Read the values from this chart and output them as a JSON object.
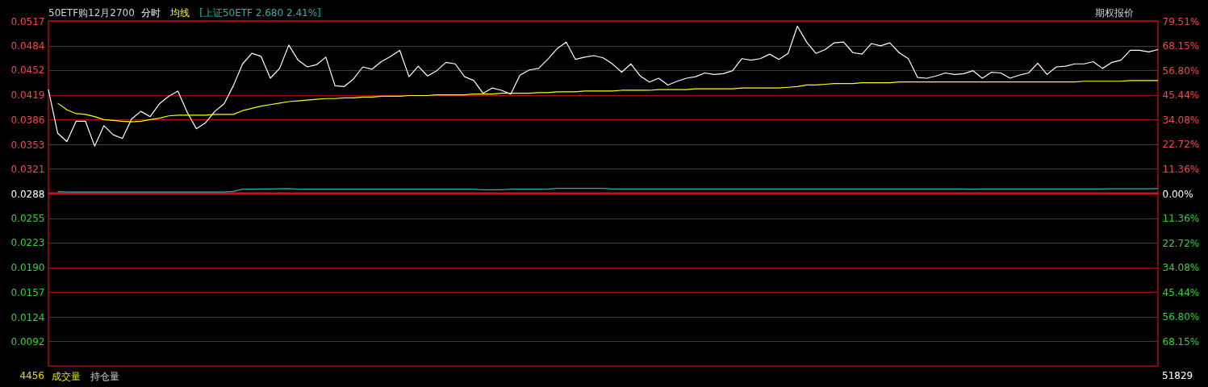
{
  "chart_data": {
    "type": "line",
    "title": "50ETF购12月2700",
    "categories": [
      null,
      null,
      null,
      null,
      null,
      null,
      null,
      null,
      null,
      null,
      null,
      null,
      null,
      null,
      null,
      null,
      null,
      null,
      null,
      null,
      null,
      null,
      null,
      null,
      null,
      null,
      null,
      null,
      null,
      null,
      null,
      null,
      null,
      null,
      null,
      null,
      null,
      null,
      null,
      null,
      null,
      null,
      null,
      null,
      null,
      null,
      null,
      null,
      null,
      null,
      null,
      null,
      null,
      null,
      null,
      null,
      null,
      null,
      null,
      null,
      null,
      null,
      null,
      null,
      null,
      null,
      null,
      null,
      null,
      null,
      null,
      null,
      null,
      null,
      null,
      null,
      null,
      null,
      null,
      null,
      null,
      null,
      null,
      null,
      null,
      null,
      null,
      null,
      null,
      null,
      null,
      null,
      null,
      null,
      null,
      null,
      null,
      null,
      null,
      null,
      null,
      null,
      null,
      null,
      null,
      null,
      null,
      null,
      null,
      null,
      null,
      null,
      null,
      null,
      null,
      null,
      null,
      null,
      null,
      null,
      null
    ],
    "ylim": [
      0.0059,
      0.0517
    ],
    "yticks": [
      0.0517,
      0.0484,
      0.0452,
      0.0419,
      0.0386,
      0.0353,
      0.0321,
      0.0288,
      0.0255,
      0.0223,
      {
        "value": 0.019,
        "label": "0.0190"
      },
      0.0157,
      0.0124,
      0.0092
    ],
    "y2lim": [
      -79.51,
      79.51
    ],
    "y2ticks": [
      {
        "value": 79.51,
        "label": "79.51%"
      },
      {
        "value": 68.15,
        "label": "68.15%"
      },
      {
        "value": 56.8,
        "label": "56.80%"
      },
      {
        "value": 45.44,
        "label": "45.44%"
      },
      {
        "value": 34.08,
        "label": "34.08%"
      },
      {
        "value": 22.72,
        "label": "22.72%"
      },
      {
        "value": 11.36,
        "label": "11.36%"
      },
      {
        "value": 0,
        "label": "0.00%"
      },
      {
        "value": -11.36,
        "label": "11.36%"
      },
      {
        "value": -22.72,
        "label": "22.72%"
      },
      {
        "value": -34.08,
        "label": "34.08%"
      },
      {
        "value": -45.44,
        "label": "45.44%"
      },
      {
        "value": -56.8,
        "label": "56.80%"
      },
      {
        "value": -68.15,
        "label": "68.15%"
      }
    ],
    "tick_labels": "y",
    "grid": "y",
    "marker": "none",
    "line_style": "solid",
    "series": [
      {
        "name": "分时",
        "color": "#ffffff",
        "values": [
          0.0426,
          0.0368,
          0.0357,
          0.0384,
          0.0384,
          0.0351,
          0.0378,
          0.0366,
          0.0361,
          0.0387,
          0.0397,
          0.039,
          0.0407,
          0.0417,
          0.0424,
          0.0396,
          0.0374,
          0.0382,
          0.0397,
          0.0407,
          0.0431,
          0.046,
          0.0474,
          0.047,
          0.0441,
          0.0454,
          0.0485,
          0.0465,
          0.0456,
          0.0459,
          0.0469,
          0.0431,
          0.043,
          0.044,
          0.0456,
          0.0453,
          0.0463,
          0.047,
          0.0478,
          0.0443,
          0.0457,
          0.0444,
          0.0451,
          0.0462,
          0.046,
          0.0443,
          0.0438,
          0.0421,
          0.0428,
          0.0425,
          0.042,
          0.0445,
          0.0452,
          0.0454,
          0.0466,
          0.048,
          0.0489,
          0.0466,
          0.0469,
          0.0471,
          0.0468,
          0.046,
          0.0449,
          0.046,
          0.0444,
          0.0436,
          0.0441,
          0.0432,
          0.0437,
          0.0441,
          0.0443,
          0.0448,
          0.0446,
          0.0447,
          0.0451,
          0.0467,
          0.0465,
          0.0467,
          0.0473,
          0.0466,
          0.0474,
          0.051,
          0.0489,
          0.0474,
          0.0479,
          0.0488,
          0.0489,
          0.0475,
          0.0473,
          0.0487,
          0.0484,
          0.0488,
          0.0475,
          0.0467,
          0.0442,
          0.0441,
          0.0444,
          0.0448,
          0.0446,
          0.0447,
          0.0451,
          0.0441,
          0.0449,
          0.0448,
          0.0441,
          0.0445,
          0.0448,
          0.0461,
          0.0446,
          0.0456,
          0.0457,
          0.046,
          0.046,
          0.0463,
          0.0454,
          0.0462,
          0.0465,
          0.0478,
          0.0478,
          0.0476,
          0.0479
        ]
      },
      {
        "name": "均线",
        "color": "#ffff00",
        "values": [
          null,
          0.0408,
          0.0399,
          0.0394,
          0.0393,
          0.039,
          0.0386,
          0.0385,
          0.0384,
          0.0383,
          0.0384,
          0.0386,
          0.0388,
          0.0391,
          0.0392,
          0.0392,
          0.0392,
          0.0392,
          0.0393,
          0.0393,
          0.0393,
          0.0398,
          0.0401,
          0.0404,
          0.0406,
          0.0408,
          0.041,
          0.0411,
          0.0412,
          0.0413,
          0.0414,
          0.0414,
          0.0415,
          0.0415,
          0.0416,
          0.0416,
          0.0417,
          0.0417,
          0.0417,
          0.0418,
          0.0418,
          0.0418,
          0.0419,
          0.0419,
          0.0419,
          0.0419,
          0.042,
          0.042,
          0.042,
          0.0421,
          0.0421,
          0.0421,
          0.0421,
          0.0422,
          0.0422,
          0.0423,
          0.0423,
          0.0423,
          0.0424,
          0.0424,
          0.0424,
          0.0424,
          0.0425,
          0.0425,
          0.0425,
          0.0425,
          0.0426,
          0.0426,
          0.0426,
          0.0426,
          0.0427,
          0.0427,
          0.0427,
          0.0427,
          0.0427,
          0.0428,
          0.0428,
          0.0428,
          0.0428,
          0.0428,
          0.0429,
          0.043,
          0.0432,
          0.0432,
          0.0433,
          0.0434,
          0.0434,
          0.0434,
          0.0435,
          0.0435,
          0.0435,
          0.0435,
          0.0436,
          0.0436,
          0.0436,
          0.0436,
          0.0436,
          0.0436,
          0.0436,
          0.0436,
          0.0436,
          0.0436,
          0.0436,
          0.0436,
          0.0436,
          0.0436,
          0.0436,
          0.0436,
          0.0436,
          0.0436,
          0.0436,
          0.0436,
          0.0437,
          0.0437,
          0.0437,
          0.0437,
          0.0437,
          0.0438,
          0.0438,
          0.0438,
          0.0438
        ]
      },
      {
        "name": "[上证50ETF 2.680 2.41%]",
        "color": "#2ab0a8",
        "axis": "y2",
        "values": [
          null,
          0.9,
          0.7,
          0.7,
          0.7,
          0.7,
          0.7,
          0.7,
          0.7,
          0.7,
          0.7,
          0.7,
          0.7,
          0.7,
          0.7,
          0.7,
          0.7,
          0.7,
          0.7,
          0.7,
          1.0,
          2.0,
          2.0,
          2.1,
          2.1,
          2.2,
          2.3,
          2.0,
          2.0,
          2.0,
          2.0,
          2.0,
          2.0,
          2.0,
          2.0,
          2.0,
          2.0,
          2.0,
          2.0,
          2.0,
          2.0,
          2.0,
          2.0,
          2.0,
          2.0,
          2.0,
          2.0,
          1.7,
          1.7,
          1.7,
          2.0,
          2.0,
          2.0,
          2.0,
          2.0,
          2.4,
          2.4,
          2.4,
          2.4,
          2.4,
          2.4,
          2.1,
          2.1,
          2.1,
          2.1,
          2.1,
          2.1,
          2.1,
          2.1,
          2.1,
          2.1,
          2.1,
          2.1,
          2.1,
          2.1,
          2.1,
          2.1,
          2.1,
          2.1,
          2.1,
          2.1,
          2.1,
          2.1,
          2.1,
          2.1,
          2.1,
          2.1,
          2.1,
          2.1,
          2.1,
          2.1,
          2.1,
          2.1,
          2.1,
          2.1,
          2.1,
          2.1,
          2.1,
          2.1,
          2.1,
          2.0,
          2.1,
          2.1,
          2.1,
          2.1,
          2.1,
          2.1,
          2.1,
          2.1,
          2.1,
          2.1,
          2.1,
          2.1,
          2.1,
          2.1,
          2.2,
          2.2,
          2.2,
          2.2,
          2.2,
          2.3
        ]
      }
    ],
    "ref_lines": [
      {
        "axis": "y",
        "value": 0.0288,
        "color": "#c01818",
        "line_style": "solid"
      }
    ],
    "annotations": [
      "期权报价",
      "4456",
      "51829",
      "成交量",
      "持仓量"
    ]
  }
}
